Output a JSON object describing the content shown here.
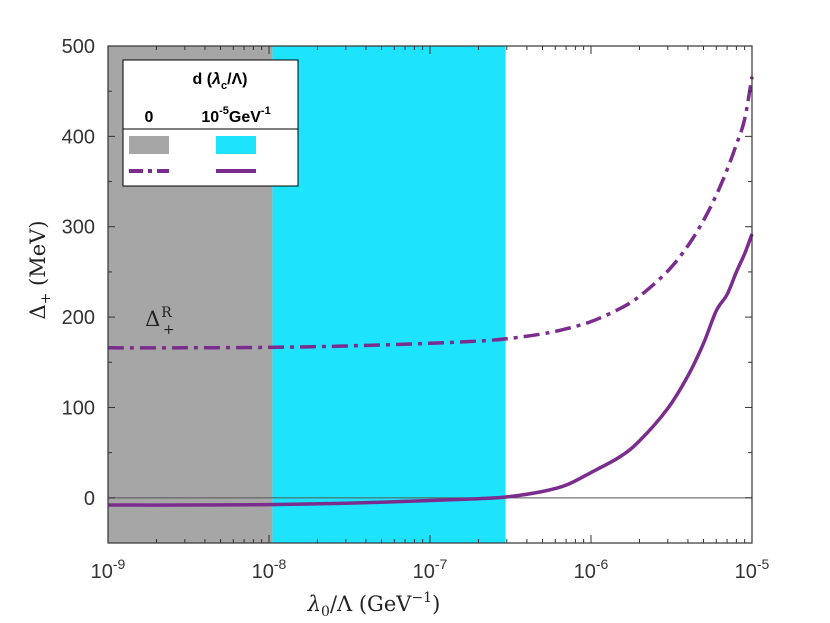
{
  "chart_data": {
    "type": "line",
    "x_scale": "log",
    "xlim": [
      1e-09,
      1e-05
    ],
    "ylim": [
      -50,
      500
    ],
    "x_ticks": [
      {
        "value": 1e-09,
        "base": "10",
        "exp": "-9"
      },
      {
        "value": 1e-08,
        "base": "10",
        "exp": "-8"
      },
      {
        "value": 1e-07,
        "base": "10",
        "exp": "-7"
      },
      {
        "value": 1e-06,
        "base": "10",
        "exp": "-6"
      },
      {
        "value": 1e-05,
        "base": "10",
        "exp": "-5"
      }
    ],
    "y_ticks": [
      0,
      100,
      200,
      300,
      400,
      500
    ],
    "xlabel": {
      "lambda": "λ",
      "sub": "0",
      "rest": "/Λ (GeV",
      "exp": "−1",
      "close": ")"
    },
    "ylabel": {
      "delta": "Δ",
      "sub": "+",
      "rest": " (MeV)"
    },
    "reference_line": {
      "y": 0,
      "color": "#555555"
    },
    "shaded_regions": [
      {
        "name": "d = 0",
        "x_from": 1e-09,
        "x_to": 1.05e-08,
        "color": "#a6a6a6"
      },
      {
        "name": "d = 10^-5 GeV^-1",
        "x_from": 1.05e-08,
        "x_to": 2.95e-07,
        "color": "#1ee3fd"
      }
    ],
    "series": [
      {
        "name": "d = 0 (dash-dot)",
        "style": "dashdot",
        "color": "#7b2d8e",
        "x": [
          1e-09,
          3e-09,
          1e-08,
          3e-08,
          1e-07,
          2e-07,
          3e-07,
          5e-07,
          7e-07,
          1e-06,
          1.5e-06,
          2e-06,
          3e-06,
          4e-06,
          5e-06,
          6e-06,
          7e-06,
          8e-06,
          9e-06,
          1e-05
        ],
        "values": [
          166,
          166,
          166.5,
          168,
          171,
          173.5,
          176,
          181.5,
          187,
          195,
          209,
          223,
          251,
          279,
          307,
          335,
          363,
          391,
          419,
          466
        ]
      },
      {
        "name": "d = 10^-5 GeV^-1 (solid)",
        "style": "solid",
        "color": "#7b2d8e",
        "x": [
          1e-09,
          3e-09,
          1e-08,
          3e-08,
          1e-07,
          2e-07,
          3e-07,
          5e-07,
          7e-07,
          1e-06,
          1.5e-06,
          2e-06,
          3e-06,
          4e-06,
          5e-06,
          6e-06,
          7e-06,
          8e-06,
          9e-06,
          1e-05
        ],
        "values": [
          -8,
          -8,
          -7.5,
          -6,
          -3,
          -1,
          1,
          7,
          14,
          28,
          45,
          63,
          99,
          135,
          171,
          207,
          225,
          250,
          270,
          292
        ]
      }
    ],
    "annotation": {
      "text_delta": "Δ",
      "sub": "+",
      "sup": "R",
      "x": 1.7e-09,
      "y": 190
    },
    "legend": {
      "placement": "top-left",
      "title_d": "d (",
      "title_lambda": "λ",
      "title_sub": "c",
      "title_rest": "/Λ)",
      "col1": "0",
      "col2_base": "10",
      "col2_exp": "-5",
      "col2_unit": "GeV",
      "col2_unit_exp": "-1"
    }
  }
}
